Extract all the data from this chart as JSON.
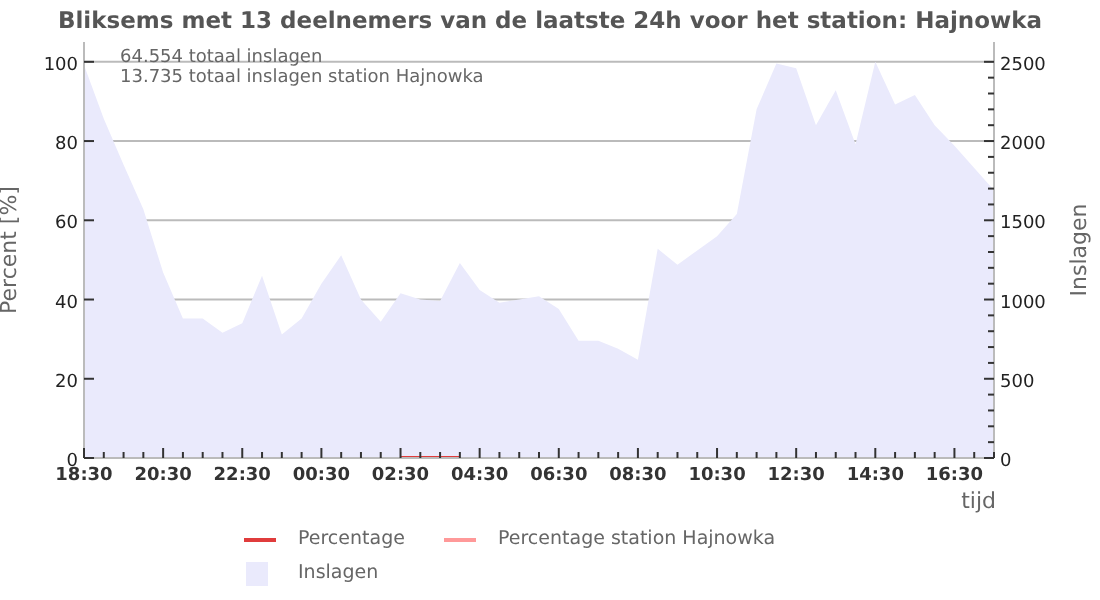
{
  "chart_data": {
    "type": "line",
    "title": "Bliksems met 13 deelnemers van de laatste 24h voor het station: Hajnowka",
    "xlabel": "tijd",
    "ylabel": "Percent   [%]",
    "y2label": "Inslagen",
    "annotations": [
      "64.554 totaal inslagen",
      "13.735 totaal inslagen station Hajnowka"
    ],
    "categories": [
      "18:30",
      null,
      null,
      null,
      "20:30",
      null,
      null,
      null,
      "22:30",
      null,
      null,
      null,
      "00:30",
      null,
      null,
      null,
      "02:30",
      null,
      null,
      null,
      "04:30",
      null,
      null,
      null,
      "06:30",
      null,
      null,
      null,
      "08:30",
      null,
      null,
      null,
      "10:30",
      null,
      null,
      null,
      "12:30",
      null,
      null,
      null,
      "14:30",
      null,
      null,
      null,
      "16:30",
      null,
      null
    ],
    "series": [
      {
        "name": "Percentage",
        "color": "#e03c3c",
        "values": [
          null,
          null,
          null,
          null,
          null,
          null,
          null,
          null,
          null,
          null,
          null,
          null,
          null,
          null,
          null,
          null,
          0,
          0,
          0,
          0,
          null,
          null,
          null,
          null,
          null,
          null,
          null,
          null,
          null,
          null,
          null,
          null,
          null,
          null,
          null,
          null,
          null,
          null,
          null,
          null,
          null,
          null,
          null,
          null,
          null,
          null,
          null
        ]
      },
      {
        "name": "Percentage station Hajnowka",
        "color": "#ff9999",
        "values": [
          null,
          null,
          null,
          null,
          null,
          null,
          null,
          null,
          null,
          null,
          null,
          null,
          null,
          null,
          null,
          null,
          null,
          null,
          null,
          null,
          null,
          null,
          null,
          null,
          null,
          null,
          null,
          null,
          null,
          null,
          null,
          null,
          null,
          null,
          null,
          null,
          null,
          null,
          null,
          null,
          null,
          null,
          null,
          null,
          null,
          null,
          null
        ]
      },
      {
        "name": "Inslagen",
        "type": "area",
        "axis": "y2",
        "color": "#eaeafc",
        "values": [
          2480,
          2140,
          1850,
          1570,
          1170,
          880,
          880,
          790,
          850,
          1150,
          780,
          880,
          1100,
          1280,
          1000,
          860,
          1040,
          1000,
          990,
          1230,
          1060,
          980,
          1000,
          1020,
          940,
          740,
          740,
          690,
          620,
          1320,
          1220,
          1310,
          1400,
          1540,
          2200,
          2490,
          2460,
          2100,
          2320,
          1980,
          2500,
          2230,
          2290,
          2100,
          1970,
          1830,
          1690
        ]
      }
    ],
    "ylim": [
      0,
      105
    ],
    "yticks": [
      0,
      20,
      40,
      60,
      80,
      100
    ],
    "y2lim": [
      0,
      2625
    ],
    "y2ticks": [
      0,
      {
        "value": 100,
        "label": null
      },
      {
        "value": 200,
        "label": null
      },
      {
        "value": 300,
        "label": null
      },
      {
        "value": 400,
        "label": null
      },
      500,
      {
        "value": 600,
        "label": null
      },
      {
        "value": 700,
        "label": null
      },
      {
        "value": 800,
        "label": null
      },
      {
        "value": 900,
        "label": null
      },
      1000,
      {
        "value": 1100,
        "label": null
      },
      {
        "value": 1200,
        "label": null
      },
      {
        "value": 1300,
        "label": null
      },
      {
        "value": 1400,
        "label": null
      },
      1500,
      {
        "value": 1600,
        "label": null
      },
      {
        "value": 1700,
        "label": null
      },
      {
        "value": 1800,
        "label": null
      },
      {
        "value": 1900,
        "label": null
      },
      2000,
      {
        "value": 2100,
        "label": null
      },
      {
        "value": 2200,
        "label": null
      },
      {
        "value": 2300,
        "label": null
      },
      {
        "value": 2400,
        "label": null
      },
      2500
    ],
    "grid": "y",
    "legend": "bottom",
    "marker": "none",
    "line_style": "solid"
  }
}
